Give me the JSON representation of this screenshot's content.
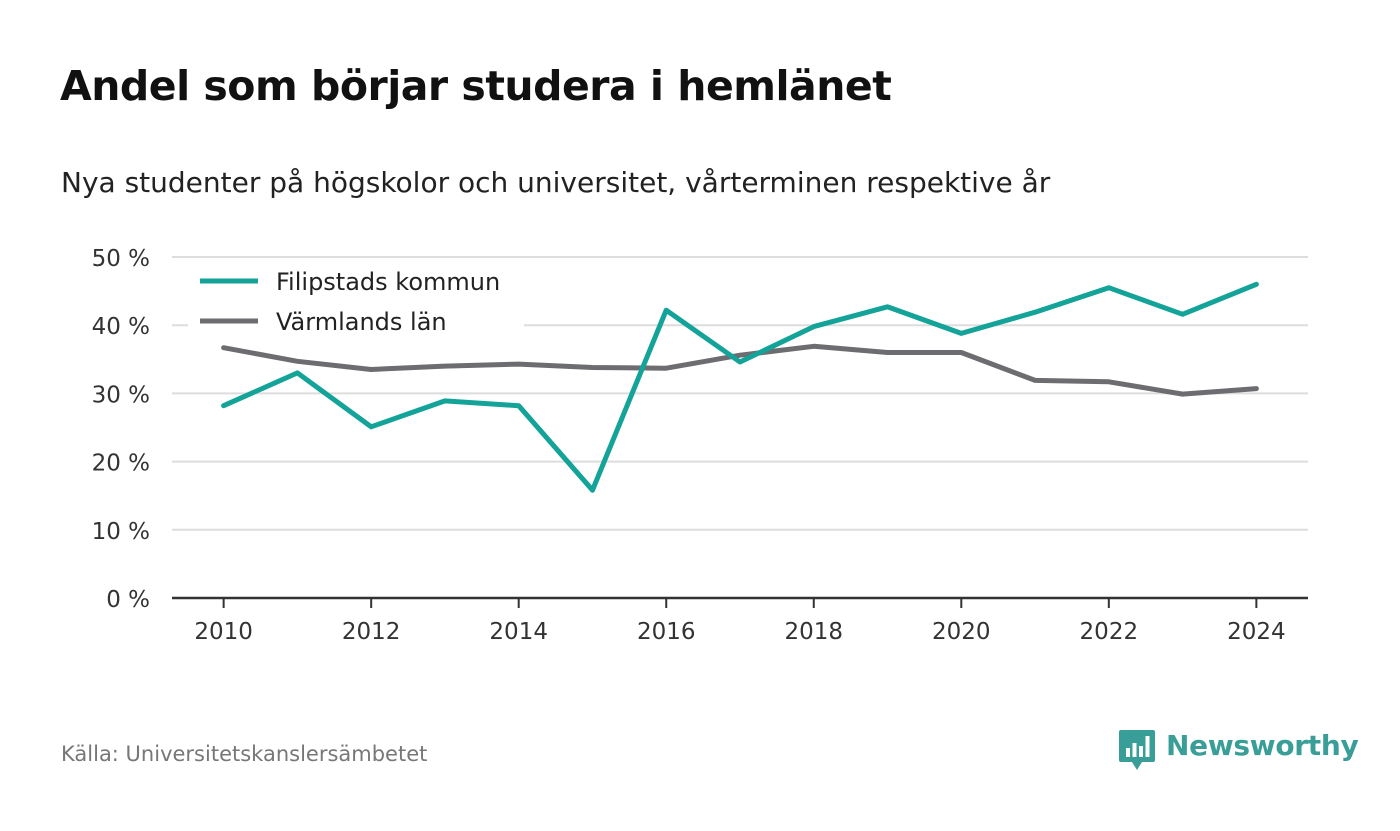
{
  "title": "Andel som börjar studera i hemlänet",
  "subtitle": "Nya studenter på högskolor och universitet, vårterminen respektive år",
  "source": "Källa: Universitetskanslersämbetet",
  "brand": {
    "name": "Newsworthy",
    "color": "#3a9e98"
  },
  "chart_data": {
    "type": "line",
    "x": [
      2010,
      2011,
      2012,
      2013,
      2014,
      2015,
      2016,
      2017,
      2018,
      2019,
      2020,
      2021,
      2022,
      2023,
      2024
    ],
    "xticks": [
      2010,
      2012,
      2014,
      2016,
      2018,
      2020,
      2022,
      2024
    ],
    "xlim": [
      2009.3,
      2024.7
    ],
    "ylim": [
      0,
      50
    ],
    "yticks": [
      0,
      10,
      20,
      30,
      40,
      50
    ],
    "ytick_labels": [
      "0 %",
      "10 %",
      "20 %",
      "30 %",
      "40 %",
      "50 %"
    ],
    "xlabel": "",
    "ylabel": "",
    "grid": true,
    "legend_position": "top-left",
    "series": [
      {
        "name": "Filipstads kommun",
        "color": "#14a399",
        "values": [
          28.2,
          33.0,
          25.1,
          28.9,
          28.2,
          15.8,
          42.2,
          34.6,
          39.8,
          42.7,
          38.8,
          41.9,
          45.5,
          41.6,
          46.0
        ]
      },
      {
        "name": "Värmlands län",
        "color": "#6d6c70",
        "values": [
          36.7,
          34.7,
          33.5,
          34.0,
          34.3,
          33.8,
          33.7,
          35.6,
          36.9,
          36.0,
          36.0,
          31.9,
          31.7,
          29.9,
          30.7
        ]
      }
    ]
  }
}
